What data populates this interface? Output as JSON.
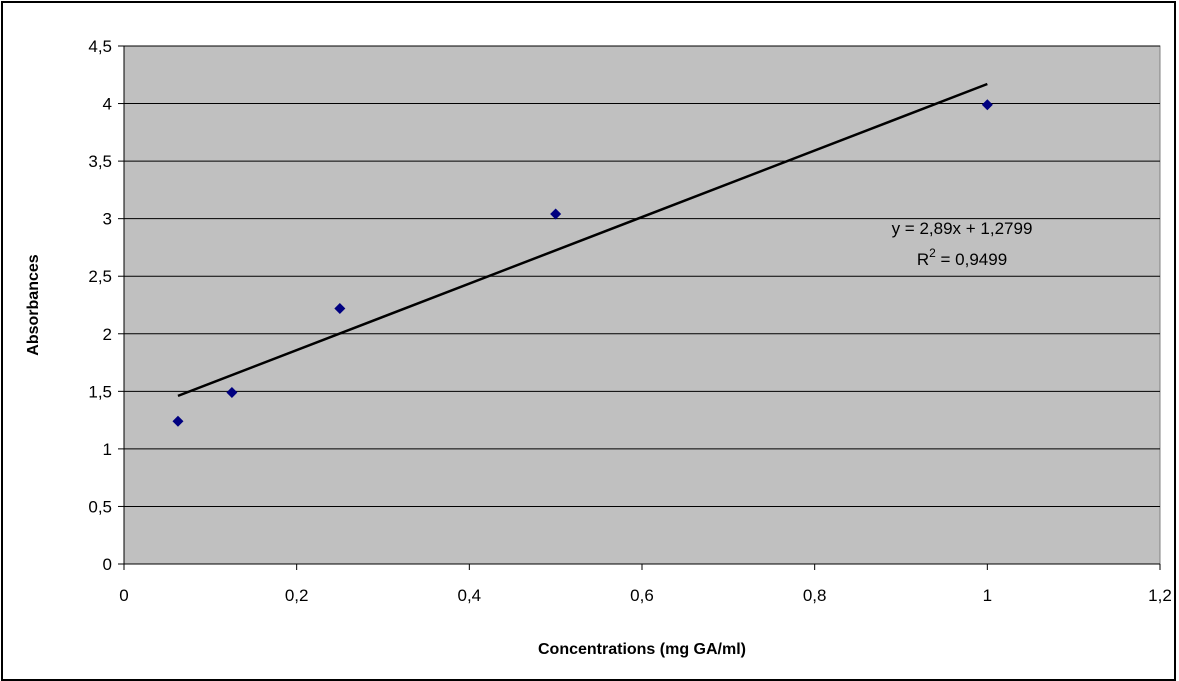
{
  "chart_data": {
    "type": "scatter",
    "title": "",
    "xlabel": "Concentrations (mg GA/ml)",
    "ylabel": "Absorbances",
    "xlim": [
      0,
      1.2
    ],
    "ylim": [
      0,
      4.5
    ],
    "x_ticks": [
      "0",
      "0,2",
      "0,4",
      "0,6",
      "0,8",
      "1",
      "1,2"
    ],
    "y_ticks": [
      "0",
      "0,5",
      "1",
      "1,5",
      "2",
      "2,5",
      "3",
      "3,5",
      "4",
      "4,5"
    ],
    "grid": "horizontal",
    "plot_background": "#C0C0C0",
    "series": [
      {
        "marker_color": "#000080",
        "x": [
          0.0625,
          0.125,
          0.25,
          0.5,
          1.0
        ],
        "y": [
          1.24,
          1.49,
          2.22,
          3.04,
          3.99
        ]
      }
    ],
    "trendline": {
      "type": "linear",
      "slope": 2.89,
      "intercept": 1.2799,
      "x_range": [
        0.0625,
        1.0
      ],
      "equation": "y = 2,89x + 1,2799",
      "r2_prefix": "R",
      "r2_sup": "2",
      "r2_suffix": " = 0,9499"
    }
  }
}
